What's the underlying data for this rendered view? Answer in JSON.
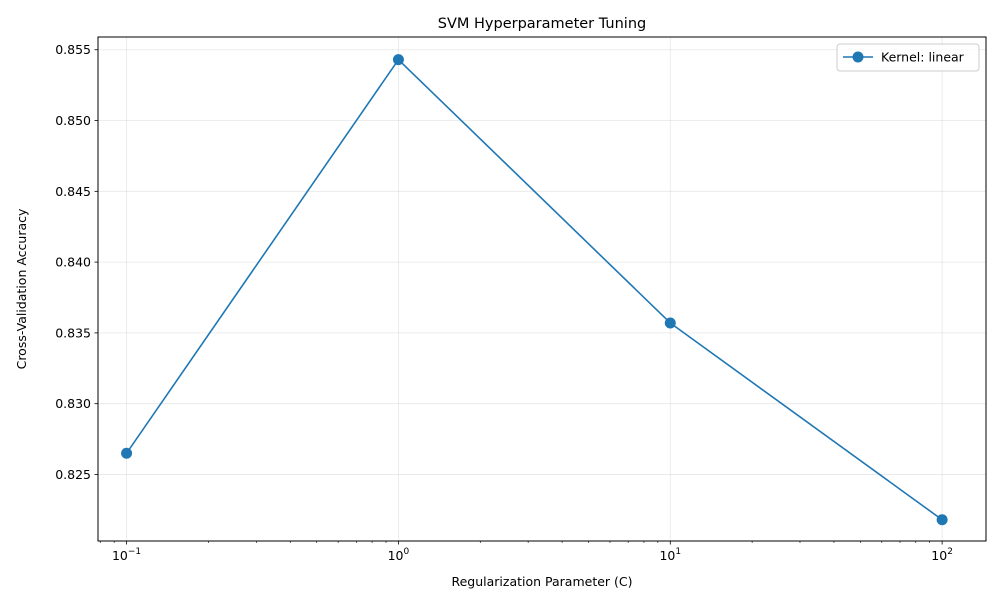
{
  "chart_data": {
    "type": "line",
    "title": "SVM Hyperparameter Tuning",
    "xlabel": "Regularization Parameter (C)",
    "ylabel": "Cross-Validation Accuracy",
    "x_scale": "log",
    "xlim": [
      0.0785,
      145
    ],
    "ylim": [
      0.8203,
      0.8559
    ],
    "x_ticks": [
      {
        "value": 0.1,
        "base": "10",
        "exp": "−1"
      },
      {
        "value": 1,
        "base": "10",
        "exp": "0"
      },
      {
        "value": 10,
        "base": "10",
        "exp": "1"
      },
      {
        "value": 100,
        "base": "10",
        "exp": "2"
      }
    ],
    "y_ticks": [
      0.825,
      0.83,
      0.835,
      0.84,
      0.845,
      0.85,
      0.855
    ],
    "y_tick_labels": [
      "0.825",
      "0.830",
      "0.835",
      "0.840",
      "0.845",
      "0.850",
      "0.855"
    ],
    "grid": true,
    "legend_position": "top-right",
    "series": [
      {
        "name": "Kernel: linear",
        "color": "#1f77b4",
        "marker": "circle",
        "x": [
          0.1,
          1,
          10,
          100
        ],
        "y": [
          0.8265,
          0.8543,
          0.8357,
          0.8218
        ]
      }
    ]
  }
}
